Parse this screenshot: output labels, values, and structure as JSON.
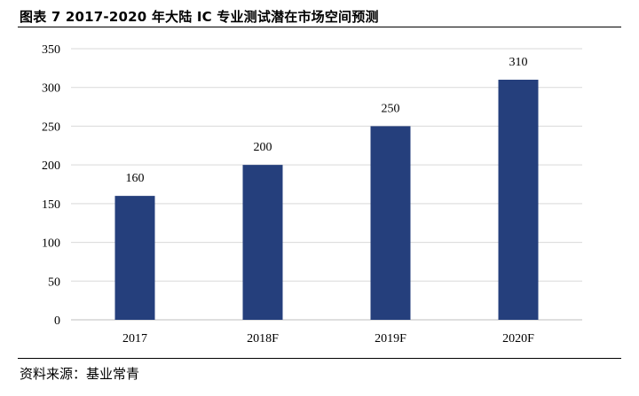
{
  "title": "图表 7 2017-2020 年大陆 IC 专业测试潜在市场空间预测",
  "source": "资料来源：基业常青",
  "colors": {
    "bar": "#253f7c",
    "grid": "#d9d9d9",
    "axis": "#bfbfbf",
    "text": "#000000"
  },
  "chart_data": {
    "type": "bar",
    "title": "",
    "xlabel": "",
    "ylabel": "",
    "categories": [
      "2017",
      "2018F",
      "2019F",
      "2020F"
    ],
    "values": [
      160,
      200,
      250,
      310
    ],
    "data_labels": [
      "160",
      "200",
      "250",
      "310"
    ],
    "ylim": [
      0,
      350
    ],
    "yticks": [
      0,
      50,
      100,
      150,
      200,
      250,
      300,
      350
    ],
    "grid": true,
    "legend": "none"
  }
}
